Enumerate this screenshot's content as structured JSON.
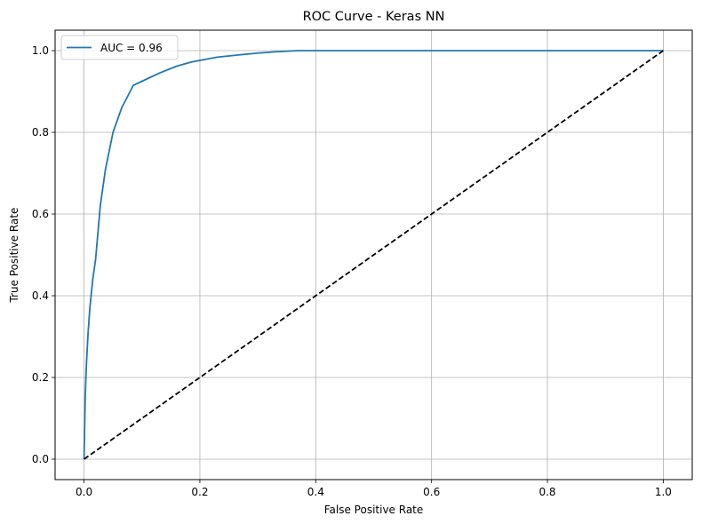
{
  "chart_data": {
    "type": "line",
    "title": "ROC Curve - Keras NN",
    "xlabel": "False Positive Rate",
    "ylabel": "True Positive Rate",
    "xlim": [
      -0.05,
      1.05
    ],
    "ylim": [
      -0.05,
      1.05
    ],
    "xticks": [
      0.0,
      0.2,
      0.4,
      0.6,
      0.8,
      1.0
    ],
    "yticks": [
      0.0,
      0.2,
      0.4,
      0.6,
      0.8,
      1.0
    ],
    "xtick_labels": [
      "0.0",
      "0.2",
      "0.4",
      "0.6",
      "0.8",
      "1.0"
    ],
    "ytick_labels": [
      "0.0",
      "0.2",
      "0.4",
      "0.6",
      "0.8",
      "1.0"
    ],
    "grid": true,
    "legend_position": "top-left",
    "series": [
      {
        "name": "AUC = 0.96",
        "color": "#1f77b4",
        "style": "solid",
        "x": [
          0.0,
          0.002,
          0.004,
          0.007,
          0.01,
          0.015,
          0.02,
          0.028,
          0.037,
          0.05,
          0.065,
          0.085,
          0.1,
          0.13,
          0.16,
          0.185,
          0.2,
          0.23,
          0.27,
          0.3,
          0.33,
          0.37,
          0.5,
          0.7,
          0.9,
          1.0
        ],
        "y": [
          0.0,
          0.15,
          0.23,
          0.31,
          0.37,
          0.44,
          0.49,
          0.62,
          0.71,
          0.8,
          0.86,
          0.915,
          0.925,
          0.945,
          0.962,
          0.972,
          0.976,
          0.984,
          0.99,
          0.994,
          0.997,
          1.0,
          1.0,
          1.0,
          1.0,
          1.0
        ]
      },
      {
        "name": "",
        "color": "#000000",
        "style": "dashed",
        "x": [
          0.0,
          1.0
        ],
        "y": [
          0.0,
          1.0
        ]
      }
    ]
  }
}
